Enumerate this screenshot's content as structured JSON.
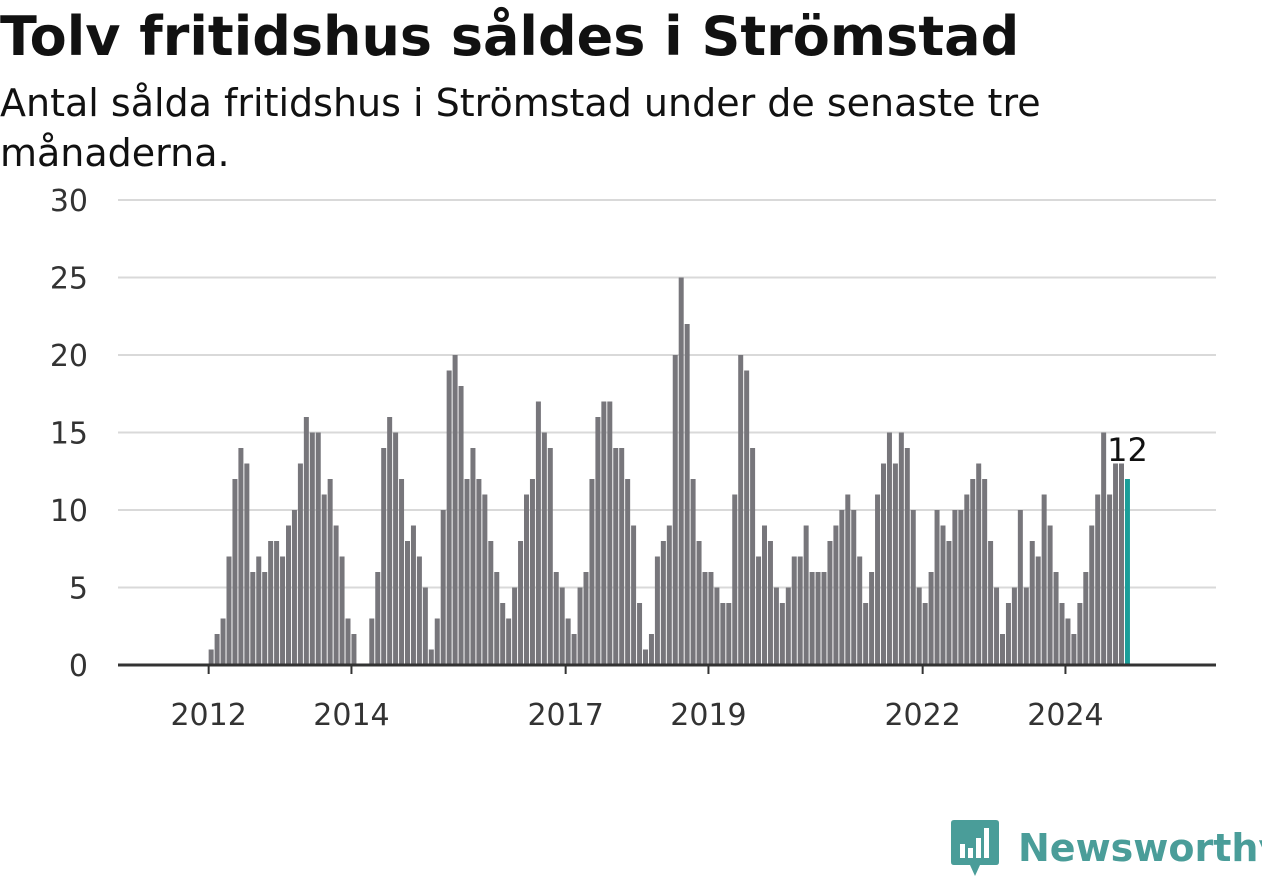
{
  "header": {
    "title": "Tolv fritidshus såldes i Strömstad",
    "subtitle": "Antal sålda fritidshus i Strömstad under de senaste tre månaderna."
  },
  "brand": {
    "name": "Newsworthy",
    "icon": "newsworthy-logo-icon",
    "color": "#4a9d99"
  },
  "colors": {
    "bar": "#77767b",
    "highlight": "#1a9e99",
    "grid": "#d9d9d9",
    "axis": "#333333"
  },
  "chart_data": {
    "type": "bar",
    "title": "Tolv fritidshus såldes i Strömstad",
    "subtitle": "Antal sålda fritidshus i Strömstad under de senaste tre månaderna.",
    "ylim": [
      0,
      30
    ],
    "yticks": [
      0,
      5,
      10,
      15,
      20,
      25,
      30
    ],
    "grid": true,
    "x_start": "2011-06",
    "x_frequency": "monthly",
    "xtick_labels": [
      {
        "label": "2012",
        "month": "2012-01"
      },
      {
        "label": "2014",
        "month": "2014-01"
      },
      {
        "label": "2017",
        "month": "2017-01"
      },
      {
        "label": "2019",
        "month": "2019-01"
      },
      {
        "label": "2022",
        "month": "2022-01"
      },
      {
        "label": "2024",
        "month": "2024-01"
      }
    ],
    "series": [
      {
        "values": [
          0,
          0,
          0,
          0,
          0,
          0,
          0,
          1,
          2,
          3,
          7,
          12,
          14,
          13,
          6,
          7,
          6,
          8,
          8,
          7,
          9,
          10,
          13,
          16,
          15,
          15,
          11,
          12,
          9,
          7,
          3,
          2,
          0,
          0,
          3,
          6,
          14,
          16,
          15,
          12,
          8,
          9,
          7,
          5,
          1,
          3,
          10,
          19,
          20,
          18,
          12,
          14,
          12,
          11,
          8,
          6,
          4,
          3,
          5,
          8,
          11,
          12,
          17,
          15,
          14,
          6,
          5,
          3,
          2,
          5,
          6,
          12,
          16,
          17,
          17,
          14,
          14,
          12,
          9,
          4,
          1,
          2,
          7,
          8,
          9,
          20,
          25,
          22,
          12,
          8,
          6,
          6,
          5,
          4,
          4,
          11,
          20,
          19,
          14,
          7,
          9,
          8,
          5,
          4,
          5,
          7,
          7,
          9,
          6,
          6,
          6,
          8,
          9,
          10,
          11,
          10,
          7,
          4,
          6,
          11,
          13,
          15,
          13,
          15,
          14,
          10,
          5,
          4,
          6,
          10,
          9,
          8,
          10,
          10,
          11,
          12,
          13,
          12,
          8,
          5,
          2,
          4,
          5,
          10,
          5,
          8,
          7,
          11,
          9,
          6,
          4,
          3,
          2,
          4,
          6,
          9,
          11,
          15,
          11,
          13,
          13,
          12
        ]
      }
    ],
    "highlight": {
      "index": 161,
      "label": "12"
    }
  }
}
